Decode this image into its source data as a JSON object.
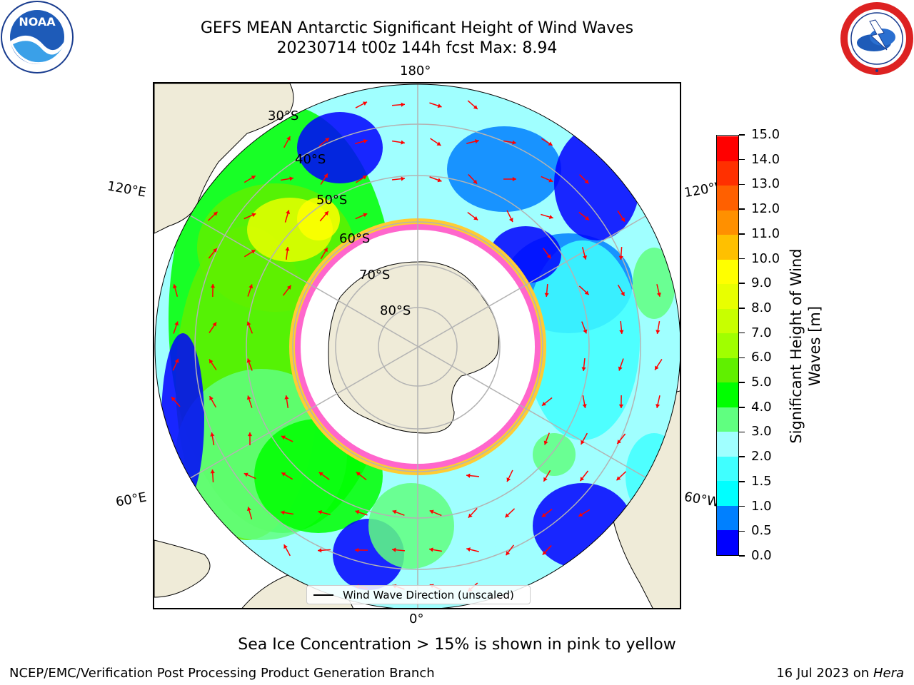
{
  "header": {
    "title_line1": "GEFS MEAN Antarctic Significant Height of Wind Waves",
    "title_line2": "20230714 t00z 144h fcst   Max: 8.94"
  },
  "logos": {
    "left": {
      "name": "NOAA",
      "ring_text": "NATIONAL OCEANIC AND ATMOSPHERIC ADMINISTRATION · U.S. DEPARTMENT OF COMMERCE",
      "icon": "noaa-logo"
    },
    "right": {
      "name": "NATIONAL WEATHER SERVICE",
      "icon": "nws-logo"
    }
  },
  "map": {
    "projection": "south-polar-stereographic",
    "longitude_labels": {
      "top": "180°",
      "upper_left": "120°E",
      "upper_right": "120°W",
      "lower_left": "60°E",
      "lower_right": "60°W",
      "bottom": "0°"
    },
    "latitude_labels": [
      "30°S",
      "40°S",
      "50°S",
      "60°S",
      "70°S",
      "80°S"
    ],
    "land_color": "#efebd8",
    "ice_edge_colors": [
      "#ff33ff",
      "#ff66cc",
      "#ffcc33"
    ],
    "arrow_color": "#ff0000"
  },
  "legend": {
    "label": "Wind Wave Direction (unscaled)"
  },
  "colorbar": {
    "title_line1": "Significant Height of Wind",
    "title_line2": "Waves [m]",
    "tick_labels": [
      "0.0",
      "0.5",
      "1.0",
      "1.5",
      "2.0",
      "3.0",
      "4.0",
      "5.0",
      "6.0",
      "7.0",
      "8.0",
      "9.0",
      "10.0",
      "11.0",
      "12.0",
      "13.0",
      "14.0",
      "15.0"
    ],
    "colors": [
      "#0000ff",
      "#0080ff",
      "#00ffff",
      "#40ffff",
      "#a0ffff",
      "#60ff80",
      "#00ff00",
      "#60f000",
      "#a0ff00",
      "#c8ff00",
      "#e8ff00",
      "#ffff00",
      "#ffc000",
      "#ff9000",
      "#ff6000",
      "#ff3000",
      "#ff0000"
    ]
  },
  "chart_data": {
    "type": "heatmap",
    "title": "GEFS MEAN Antarctic Significant Height of Wind Waves",
    "subtitle": "20230714 t00z 144h fcst   Max: 8.94",
    "variable_label": "Significant Height of Wind Waves [m]",
    "color_levels": [
      0.0,
      0.5,
      1.0,
      1.5,
      2.0,
      3.0,
      4.0,
      5.0,
      6.0,
      7.0,
      8.0,
      9.0,
      10.0,
      11.0,
      12.0,
      13.0,
      14.0,
      15.0
    ],
    "max_value": 8.94
  },
  "caption": "Sea Ice Concentration > 15% is shown in pink to yellow",
  "footer": {
    "left": "NCEP/EMC/Verification Post Processing Product Generation Branch",
    "right_date": "16 Jul 2023 on ",
    "right_host": "Hera"
  }
}
